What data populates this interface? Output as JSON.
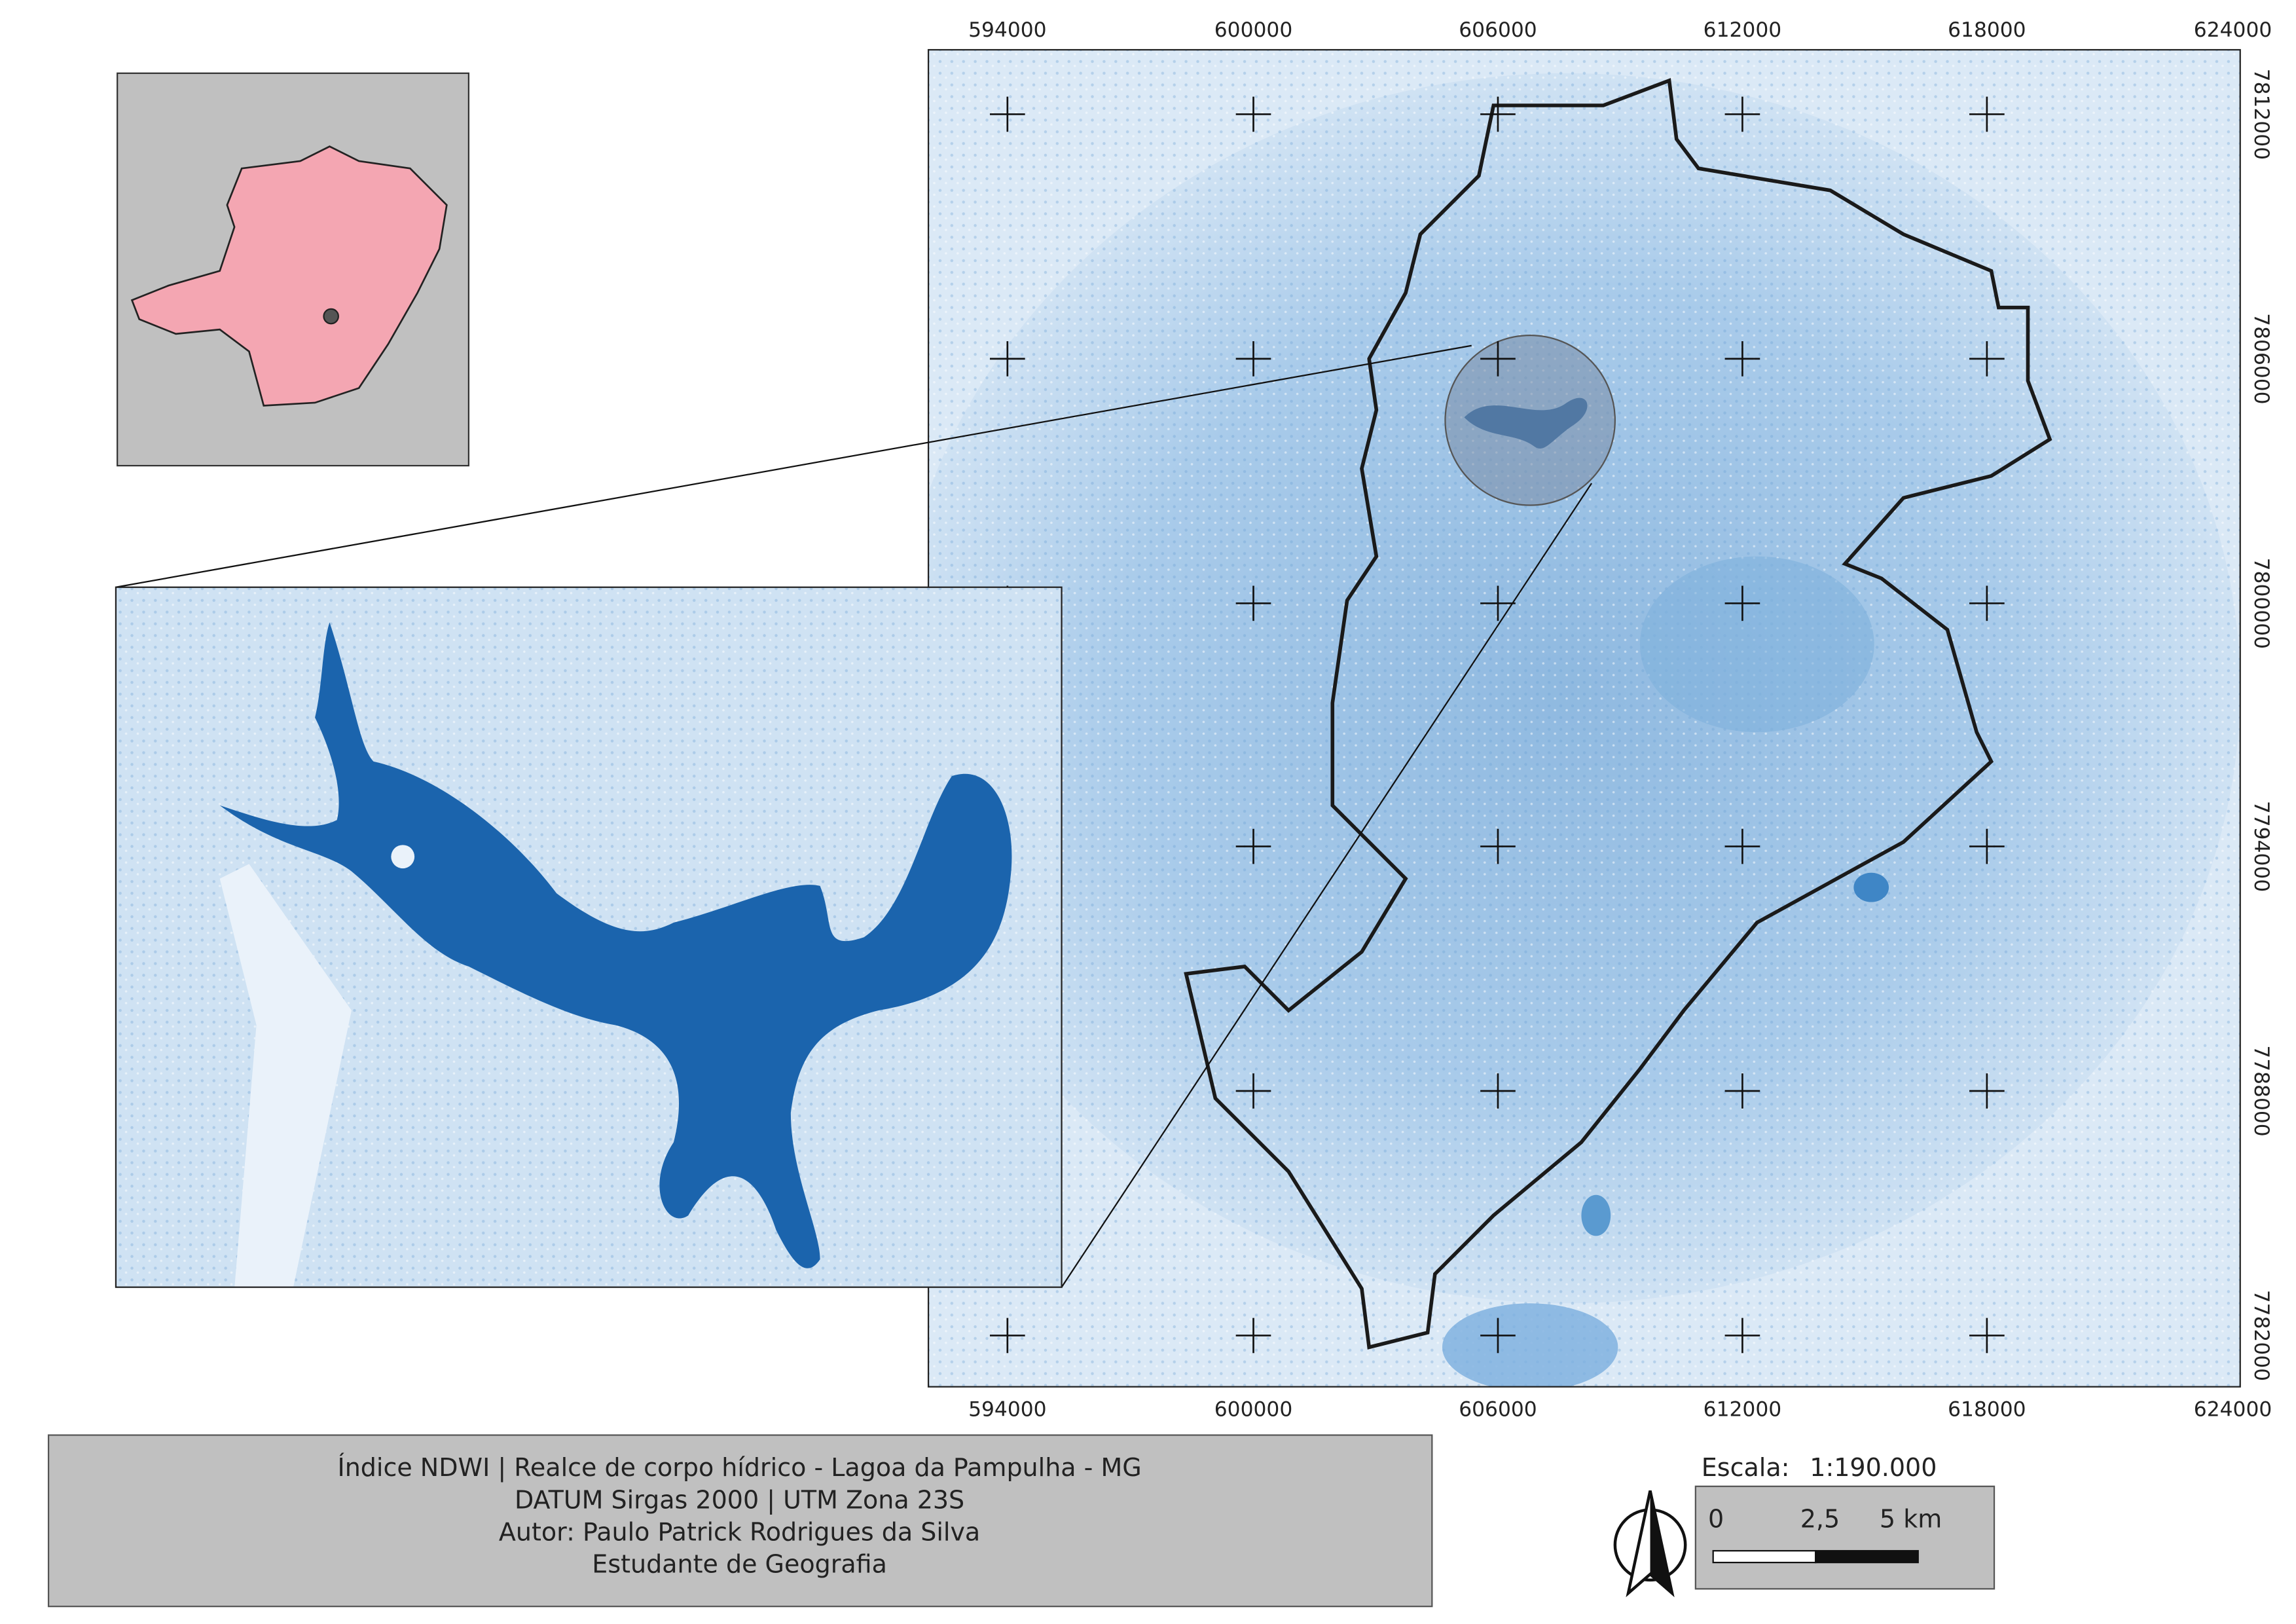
{
  "map": {
    "x_labels": [
      "594000",
      "600000",
      "606000",
      "612000",
      "618000",
      "624000"
    ],
    "y_labels": [
      "7812000",
      "7806000",
      "7800000",
      "7794000",
      "7788000",
      "7782000"
    ]
  },
  "legend": {
    "lines": [
      "Índice NDWI | Realce de corpo hídrico - Lagoa da Pampulha - MG",
      "DATUM Sirgas 2000 | UTM Zona 23S",
      "Autor: Paulo Patrick Rodrigues da Silva",
      "Estudante de Geografia"
    ]
  },
  "scale": {
    "label": "Escala:",
    "ratio": "1:190.000",
    "ticks": [
      "0",
      "2,5",
      "5 km"
    ]
  }
}
